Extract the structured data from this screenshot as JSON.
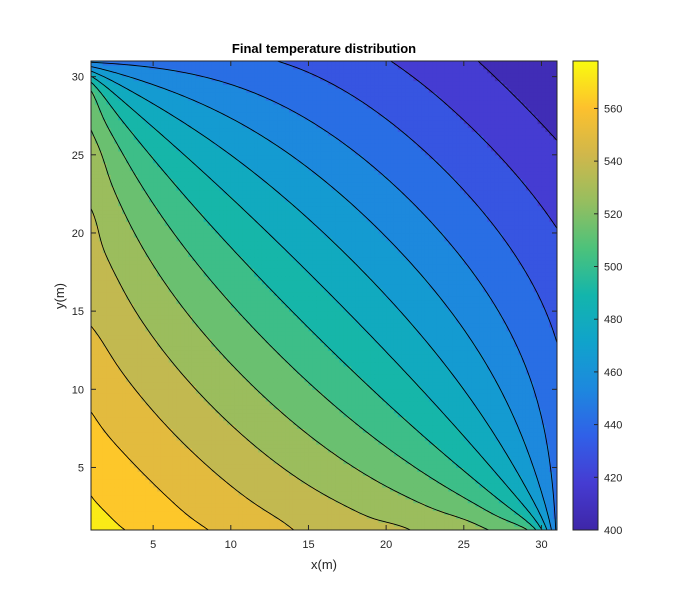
{
  "chart_data": {
    "type": "heatmap",
    "subtype": "filled-contour",
    "title": "Final temperature distribution",
    "xlabel": "x(m)",
    "ylabel": "y(m)",
    "xlim": [
      1,
      31
    ],
    "ylim": [
      1,
      31
    ],
    "xticks": [
      5,
      10,
      15,
      20,
      25,
      30
    ],
    "yticks": [
      5,
      10,
      15,
      20,
      25,
      30
    ],
    "contour_levels": [
      400,
      412,
      424,
      436,
      448,
      460,
      472,
      484,
      496,
      508,
      520,
      532,
      544,
      556,
      568
    ],
    "value_range": [
      400,
      578
    ],
    "colorbar": {
      "ticks": [
        400,
        420,
        440,
        460,
        480,
        500,
        520,
        540,
        560
      ],
      "colormap": "parula"
    },
    "boundary_conditions": {
      "top_edge": 400,
      "right_edge": 400,
      "corner_x1_y1": 578
    },
    "grid": false
  }
}
